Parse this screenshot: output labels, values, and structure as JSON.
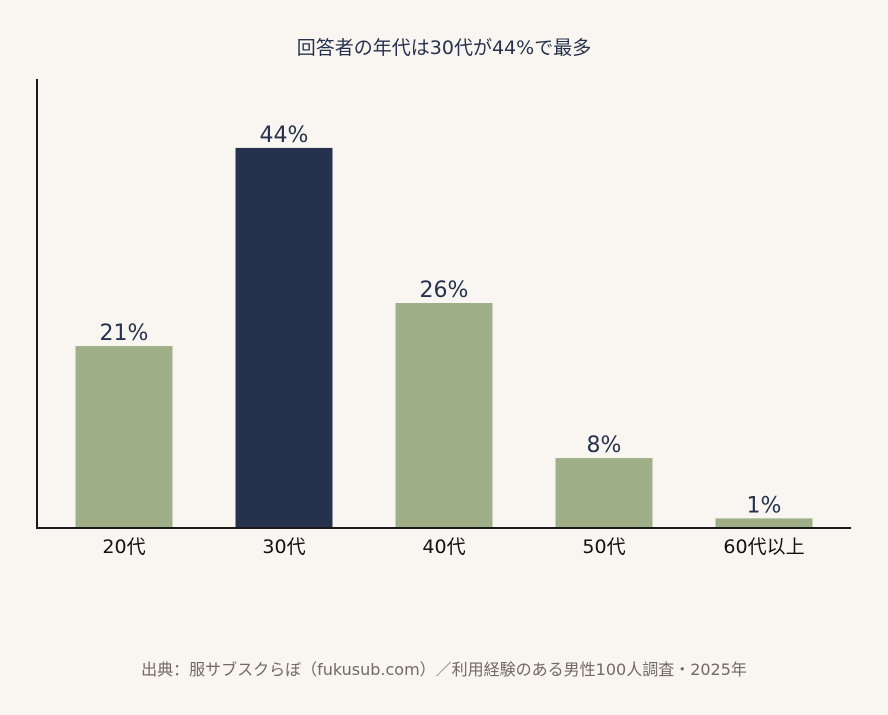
{
  "chart_data": {
    "type": "bar",
    "title": "回答者の年代は30代が44%で最多",
    "categories": [
      "20代",
      "30代",
      "40代",
      "50代",
      "60代以上"
    ],
    "values": [
      21,
      44,
      26,
      8,
      1
    ],
    "data_labels": [
      "21%",
      "44%",
      "26%",
      "8%",
      "1%"
    ],
    "ylim": [
      0,
      52
    ],
    "xlabel": "",
    "ylabel": "",
    "grid": false,
    "highlight_index": 1,
    "colors": {
      "bar": "#9eae87",
      "highlight": "#26324d",
      "label": "#26324d",
      "axis": "#1a1a1a",
      "tick_label": "#111111"
    }
  },
  "footer": {
    "source": "出典：服サブスクらぼ（fukusub.com）／利用経験のある男性100人調査・2025年"
  }
}
